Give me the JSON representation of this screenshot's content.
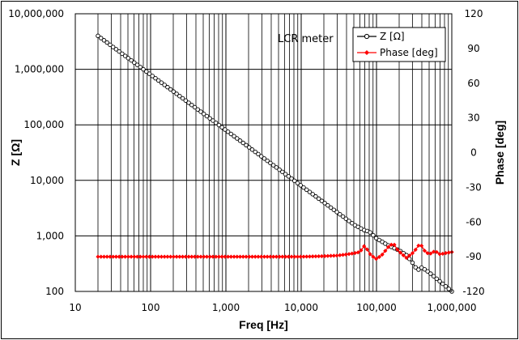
{
  "chart_data": {
    "type": "line",
    "annotation": "LCR meter",
    "xlabel": "Freq [Hz]",
    "ylabel_left": "Z [Ω]",
    "ylabel_right": "Phase [deg]",
    "x_scale": "log",
    "xlim": [
      10,
      1000000
    ],
    "x_ticks": [
      "10",
      "100",
      "1,000",
      "10,000",
      "100,000",
      "1,000,000"
    ],
    "y_left_scale": "log",
    "ylim_left": [
      100,
      10000000
    ],
    "y_left_ticks": [
      "100",
      "1,000",
      "10,000",
      "100,000",
      "1,000,000",
      "10,000,000"
    ],
    "ylim_right": [
      -120,
      120
    ],
    "y_right_ticks": [
      "-120",
      "-90",
      "-60",
      "-30",
      "0",
      "30",
      "60",
      "90",
      "120"
    ],
    "grid": true,
    "legend_position": "top-right",
    "series": [
      {
        "name": "Z [Ω]",
        "axis": "left",
        "color": "#000000",
        "marker": "open-circle",
        "x": [
          20,
          50,
          100,
          200,
          500,
          1000,
          2000,
          5000,
          10000,
          20000,
          50000,
          70000,
          80000,
          100000,
          150000,
          200000,
          250000,
          300000,
          350000,
          400000,
          500000,
          700000,
          1000000
        ],
        "values": [
          4000000,
          1600000,
          800000,
          400000,
          160000,
          80000,
          40000,
          16000,
          8000,
          4000,
          1600,
          1250,
          1200,
          900,
          650,
          550,
          450,
          330,
          240,
          270,
          220,
          150,
          100
        ]
      },
      {
        "name": "Phase [deg]",
        "axis": "right",
        "color": "#ff0000",
        "marker": "filled-diamond",
        "x": [
          20,
          50,
          100,
          200,
          500,
          1000,
          2000,
          5000,
          10000,
          20000,
          30000,
          40000,
          50000,
          60000,
          70000,
          80000,
          90000,
          100000,
          120000,
          150000,
          170000,
          190000,
          220000,
          250000,
          300000,
          350000,
          380000,
          420000,
          500000,
          600000,
          700000,
          800000,
          1000000
        ],
        "values": [
          -90,
          -90,
          -90,
          -90,
          -90,
          -90,
          -90,
          -90,
          -90,
          -89.5,
          -89,
          -88,
          -87,
          -86,
          -80,
          -87,
          -90,
          -92,
          -88,
          -80,
          -79,
          -84,
          -88,
          -91,
          -87,
          -82,
          -78,
          -84,
          -88,
          -85,
          -88,
          -87,
          -86
        ]
      }
    ]
  }
}
